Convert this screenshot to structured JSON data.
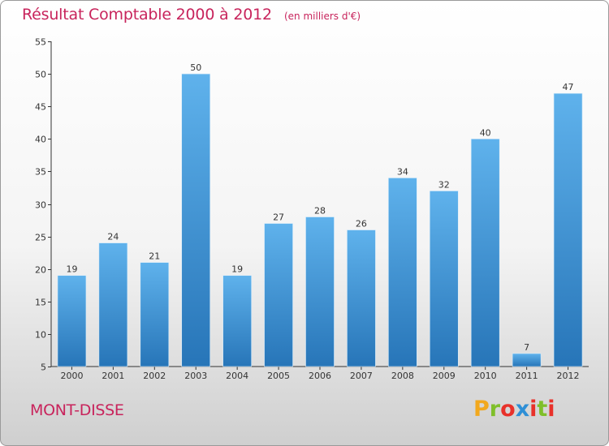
{
  "header": {
    "title": "Résultat Comptable 2000 à 2012",
    "unit": "(en milliers d'€)"
  },
  "footer": {
    "commune": "MONT-DISSE",
    "logo": "Proxiti"
  },
  "colors": {
    "accent": "#c8245c",
    "bar_light": "#5aaeea",
    "bar_dark": "#2a7bc0",
    "axis": "#333333"
  },
  "chart_data": {
    "type": "bar",
    "categories": [
      "2000",
      "2001",
      "2002",
      "2003",
      "2004",
      "2005",
      "2006",
      "2007",
      "2008",
      "2009",
      "2010",
      "2011",
      "2012"
    ],
    "values": [
      19,
      24,
      21,
      50,
      19,
      27,
      28,
      26,
      34,
      32,
      40,
      7,
      47
    ],
    "ylim": [
      5,
      55
    ],
    "yticks": [
      5,
      10,
      15,
      20,
      25,
      30,
      35,
      40,
      45,
      50,
      55
    ],
    "grid": false,
    "legend": "none"
  }
}
